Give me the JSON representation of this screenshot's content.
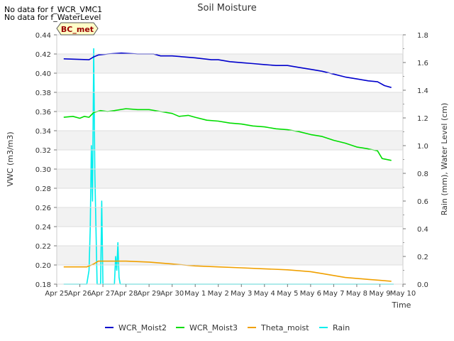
{
  "notes": [
    "No data for f_WCR_VMC1",
    "No data for f_WaterLevel"
  ],
  "chart_data": {
    "type": "line",
    "title": "Soil Moisture",
    "xlabel": "Time",
    "ylabel": "VWC (m3/m3)",
    "y2label": "Rain (mm), Water Level (cm)",
    "station_badge": "BC_met",
    "x_ticks": [
      "Apr 25",
      "Apr 26",
      "Apr 27",
      "Apr 28",
      "Apr 29",
      "Apr 30",
      "May 1",
      "May 2",
      "May 3",
      "May 4",
      "May 5",
      "May 6",
      "May 7",
      "May 8",
      "May 9",
      "May 10"
    ],
    "xlim": [
      0,
      15
    ],
    "ylim": [
      0.18,
      0.44
    ],
    "y_ticks": [
      "0.18",
      "0.20",
      "0.22",
      "0.24",
      "0.26",
      "0.28",
      "0.30",
      "0.32",
      "0.34",
      "0.36",
      "0.38",
      "0.40",
      "0.42",
      "0.44"
    ],
    "y2lim": [
      0,
      1.8
    ],
    "y2_ticks": [
      "0.0",
      "0.2",
      "0.4",
      "0.6",
      "0.8",
      "1.0",
      "1.2",
      "1.4",
      "1.6",
      "1.8"
    ],
    "colors": {
      "WCR_Moist2": "#0000cc",
      "WCR_Moist3": "#00dd00",
      "Theta_moist": "#f0a000",
      "Rain": "#00eeee"
    },
    "series": [
      {
        "name": "WCR_Moist2",
        "axis": "left",
        "x": [
          0.3,
          1.4,
          1.6,
          1.8,
          2.2,
          2.8,
          3.5,
          4.2,
          4.5,
          5.0,
          6.0,
          6.7,
          7.0,
          7.5,
          8.0,
          8.5,
          9.0,
          9.5,
          10.0,
          10.5,
          11.0,
          11.5,
          12.0,
          12.5,
          13.0,
          13.5,
          13.9,
          14.2,
          14.5
        ],
        "y": [
          0.415,
          0.414,
          0.417,
          0.419,
          0.42,
          0.421,
          0.42,
          0.42,
          0.418,
          0.418,
          0.416,
          0.414,
          0.414,
          0.412,
          0.411,
          0.41,
          0.409,
          0.408,
          0.408,
          0.406,
          0.404,
          0.402,
          0.399,
          0.396,
          0.394,
          0.392,
          0.391,
          0.387,
          0.385
        ]
      },
      {
        "name": "WCR_Moist3",
        "axis": "left",
        "x": [
          0.3,
          0.7,
          1.0,
          1.2,
          1.4,
          1.6,
          1.9,
          2.2,
          2.5,
          3.0,
          3.5,
          4.0,
          4.5,
          5.0,
          5.3,
          5.7,
          6.0,
          6.5,
          7.0,
          7.5,
          8.0,
          8.5,
          9.0,
          9.5,
          10.0,
          10.5,
          11.0,
          11.5,
          12.0,
          12.5,
          13.0,
          13.5,
          13.9,
          14.1,
          14.5
        ],
        "y": [
          0.354,
          0.355,
          0.353,
          0.355,
          0.354,
          0.359,
          0.361,
          0.36,
          0.361,
          0.363,
          0.362,
          0.362,
          0.36,
          0.358,
          0.355,
          0.356,
          0.354,
          0.351,
          0.35,
          0.348,
          0.347,
          0.345,
          0.344,
          0.342,
          0.341,
          0.339,
          0.336,
          0.334,
          0.33,
          0.327,
          0.323,
          0.321,
          0.319,
          0.311,
          0.309
        ]
      },
      {
        "name": "Theta_moist",
        "axis": "left",
        "x": [
          0.3,
          1.3,
          1.6,
          1.8,
          2.2,
          3.0,
          4.0,
          5.0,
          6.0,
          7.0,
          8.0,
          9.0,
          10.0,
          11.0,
          11.5,
          12.0,
          12.5,
          13.0,
          13.5,
          14.0,
          14.5
        ],
        "y": [
          0.198,
          0.198,
          0.201,
          0.204,
          0.204,
          0.204,
          0.203,
          0.201,
          0.199,
          0.198,
          0.197,
          0.196,
          0.195,
          0.193,
          0.191,
          0.189,
          0.187,
          0.186,
          0.185,
          0.184,
          0.183
        ]
      },
      {
        "name": "Rain",
        "axis": "right",
        "x": [
          0.3,
          1.3,
          1.4,
          1.45,
          1.5,
          1.55,
          1.6,
          1.65,
          1.7,
          1.75,
          1.8,
          1.9,
          1.95,
          2.0,
          2.05,
          2.1,
          2.5,
          2.55,
          2.6,
          2.65,
          2.7,
          2.75,
          2.8,
          14.6
        ],
        "y": [
          0,
          0,
          0.1,
          0.4,
          1.0,
          0.6,
          1.7,
          0.8,
          0.4,
          0,
          0,
          0,
          0.6,
          0,
          0,
          0,
          0,
          0.2,
          0.1,
          0.3,
          0.05,
          0,
          0,
          0
        ]
      }
    ]
  }
}
